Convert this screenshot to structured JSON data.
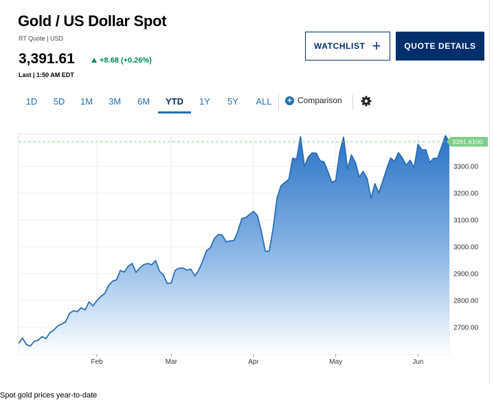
{
  "header": {
    "title": "Gold / US Dollar Spot",
    "subtitle": "RT Quote | USD",
    "price": "3,391.61",
    "change": "+8.68 (+0.26%)",
    "last_updated": "Last | 1:50 AM EDT"
  },
  "actions": {
    "watchlist_label": "WATCHLIST",
    "watchlist_icon": "+",
    "quote_details_label": "QUOTE DETAILS"
  },
  "ranges": [
    {
      "label": "1D",
      "active": false
    },
    {
      "label": "5D",
      "active": false
    },
    {
      "label": "1M",
      "active": false
    },
    {
      "label": "3M",
      "active": false
    },
    {
      "label": "6M",
      "active": false
    },
    {
      "label": "YTD",
      "active": true
    },
    {
      "label": "1Y",
      "active": false
    },
    {
      "label": "5Y",
      "active": false
    },
    {
      "label": "ALL",
      "active": false
    }
  ],
  "comparison": {
    "label": "Comparison",
    "icon": "plus-circle-icon"
  },
  "settings": {
    "icon": "gear-icon"
  },
  "caption": "Spot gold prices year-to-date",
  "colors": {
    "navy": "#002f6c",
    "accent": "#1f6fb2",
    "up": "#008658",
    "line": "#2a6fb6",
    "last_badge": "#7dcf89"
  },
  "chart_data": {
    "type": "area",
    "x_tick_labels": [
      "Feb",
      "Mar",
      "Apr",
      "May",
      "Jun"
    ],
    "x_tick_index": [
      20,
      39,
      60,
      81,
      102
    ],
    "y_ticks": [
      2700,
      2800,
      2900,
      3000,
      3100,
      3200,
      3300
    ],
    "y_tick_labels": [
      "2700.00",
      "2800.00",
      "2900.00",
      "3000.00",
      "3100.00",
      "3200.00",
      "3300.00"
    ],
    "ylim": [
      2600,
      3420
    ],
    "last_value_label": "3391.6100",
    "last_value": 3391.61,
    "grid": true,
    "values": [
      2640,
      2660,
      2636,
      2630,
      2648,
      2652,
      2665,
      2658,
      2680,
      2690,
      2705,
      2712,
      2720,
      2752,
      2762,
      2758,
      2773,
      2765,
      2795,
      2780,
      2800,
      2815,
      2826,
      2856,
      2872,
      2877,
      2912,
      2906,
      2928,
      2938,
      2905,
      2922,
      2934,
      2938,
      2933,
      2949,
      2909,
      2895,
      2863,
      2866,
      2913,
      2920,
      2921,
      2913,
      2917,
      2891,
      2913,
      2946,
      2986,
      2997,
      3031,
      3046,
      3044,
      3019,
      3022,
      3023,
      3058,
      3105,
      3109,
      3121,
      3132,
      3116,
      3058,
      2983,
      2984,
      3069,
      3182,
      3227,
      3240,
      3251,
      3330,
      3326,
      3411,
      3300,
      3335,
      3350,
      3349,
      3321,
      3316,
      3280,
      3240,
      3247,
      3351,
      3409,
      3290,
      3342,
      3315,
      3260,
      3281,
      3255,
      3181,
      3235,
      3201,
      3245,
      3290,
      3331,
      3318,
      3351,
      3331,
      3304,
      3323,
      3295,
      3382,
      3361,
      3362,
      3314,
      3330,
      3330,
      3372,
      3414,
      3391.61
    ]
  }
}
